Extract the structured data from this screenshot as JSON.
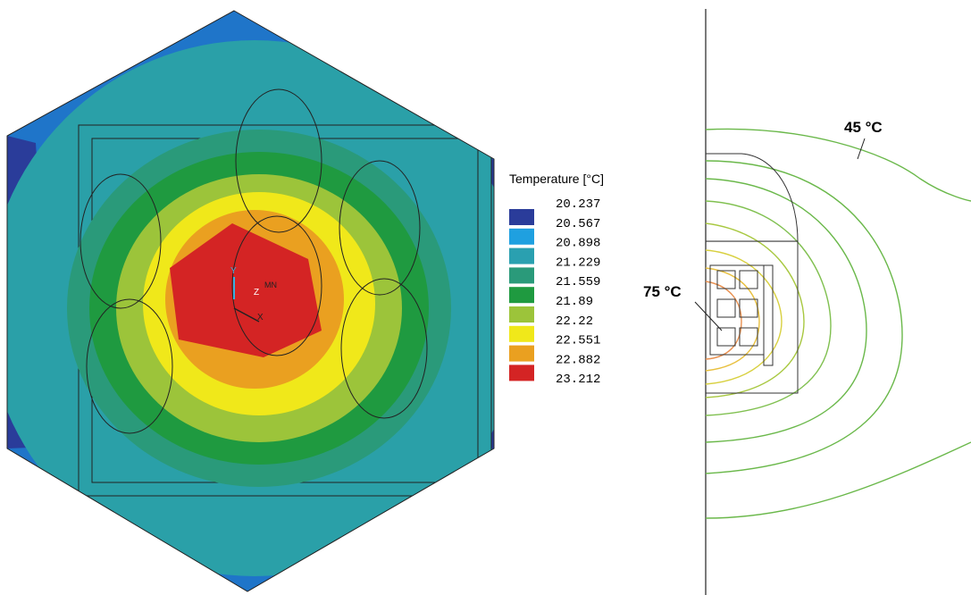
{
  "legend": {
    "title": "Temperature [°C]",
    "values": [
      "20.237",
      "20.567",
      "20.898",
      "21.229",
      "21.559",
      "21.89",
      "22.22",
      "22.551",
      "22.882",
      "23.212"
    ]
  },
  "triad": {
    "y": "Y",
    "z": "Z",
    "x": "X",
    "mn": "MN"
  },
  "annotations": {
    "outer": "45 °C",
    "inner": "75 °C"
  }
}
